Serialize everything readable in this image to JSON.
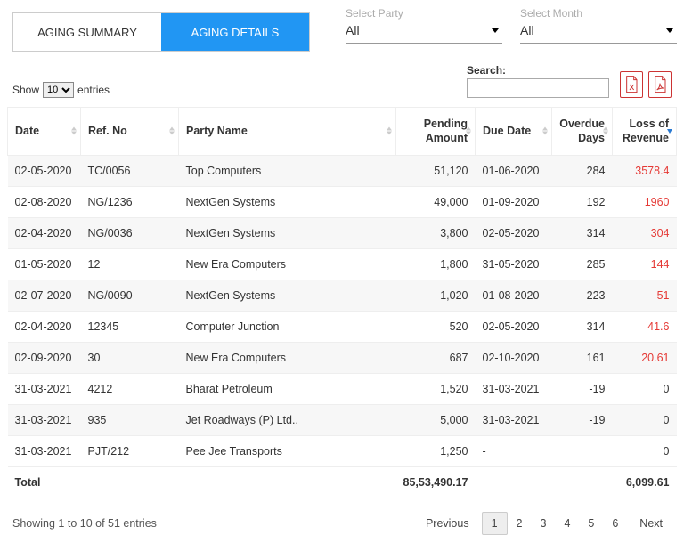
{
  "colors": {
    "accent": "#2196f3",
    "loss_red": "#e53935",
    "sort_active_blue": "#2a7ad2",
    "border_light": "#eee",
    "row_stripe": "#f7f7f7",
    "text": "#333",
    "muted": "#aaa",
    "export_border": "#c33"
  },
  "tabs": {
    "summary": "AGING SUMMARY",
    "details": "AGING DETAILS",
    "active": "details"
  },
  "filters": {
    "party_label": "Select Party",
    "party_value": "All",
    "month_label": "Select Month",
    "month_value": "All"
  },
  "table_controls": {
    "show_prefix": "Show",
    "show_suffix": "entries",
    "length_value": "10",
    "search_label": "Search:",
    "search_value": ""
  },
  "columns": {
    "date": "Date",
    "ref": "Ref. No",
    "party": "Party Name",
    "pending": "Pending Amount",
    "due": "Due Date",
    "overdue": "Overdue Days",
    "loss": "Loss of Revenue"
  },
  "rows": [
    {
      "date": "02-05-2020",
      "ref": "TC/0056",
      "party": "Top Computers",
      "pending": "51,120",
      "due": "01-06-2020",
      "overdue": "284",
      "loss": "3578.4",
      "loss_zero": false
    },
    {
      "date": "02-08-2020",
      "ref": "NG/1236",
      "party": "NextGen Systems",
      "pending": "49,000",
      "due": "01-09-2020",
      "overdue": "192",
      "loss": "1960",
      "loss_zero": false
    },
    {
      "date": "02-04-2020",
      "ref": "NG/0036",
      "party": "NextGen Systems",
      "pending": "3,800",
      "due": "02-05-2020",
      "overdue": "314",
      "loss": "304",
      "loss_zero": false
    },
    {
      "date": "01-05-2020",
      "ref": "12",
      "party": "New Era Computers",
      "pending": "1,800",
      "due": "31-05-2020",
      "overdue": "285",
      "loss": "144",
      "loss_zero": false
    },
    {
      "date": "02-07-2020",
      "ref": "NG/0090",
      "party": "NextGen Systems",
      "pending": "1,020",
      "due": "01-08-2020",
      "overdue": "223",
      "loss": "51",
      "loss_zero": false
    },
    {
      "date": "02-04-2020",
      "ref": "12345",
      "party": "Computer Junction",
      "pending": "520",
      "due": "02-05-2020",
      "overdue": "314",
      "loss": "41.6",
      "loss_zero": false
    },
    {
      "date": "02-09-2020",
      "ref": "30",
      "party": "New Era Computers",
      "pending": "687",
      "due": "02-10-2020",
      "overdue": "161",
      "loss": "20.61",
      "loss_zero": false
    },
    {
      "date": "31-03-2021",
      "ref": "4212",
      "party": "Bharat Petroleum",
      "pending": "1,520",
      "due": "31-03-2021",
      "overdue": "-19",
      "loss": "0",
      "loss_zero": true
    },
    {
      "date": "31-03-2021",
      "ref": "935",
      "party": "Jet Roadways (P) Ltd.,",
      "pending": "5,000",
      "due": "31-03-2021",
      "overdue": "-19",
      "loss": "0",
      "loss_zero": true
    },
    {
      "date": "31-03-2021",
      "ref": "PJT/212",
      "party": "Pee Jee Transports",
      "pending": "1,250",
      "due": "-",
      "overdue": "",
      "loss": "0",
      "loss_zero": true
    }
  ],
  "totals": {
    "label": "Total",
    "pending": "85,53,490.17",
    "loss": "6,099.61"
  },
  "footer": {
    "info": "Showing 1 to 10 of 51 entries",
    "prev": "Previous",
    "next": "Next",
    "pages": [
      "1",
      "2",
      "3",
      "4",
      "5",
      "6"
    ],
    "current": "1"
  }
}
